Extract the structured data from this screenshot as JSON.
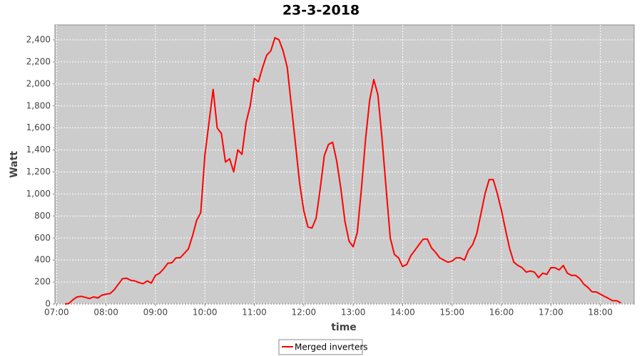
{
  "chart_data": {
    "type": "line",
    "title": "23-3-2018",
    "x_label": "time",
    "y_label": "Watt",
    "x": [
      "07:10",
      "07:15",
      "07:20",
      "07:25",
      "07:30",
      "07:35",
      "07:40",
      "07:45",
      "07:50",
      "07:55",
      "08:00",
      "08:05",
      "08:10",
      "08:15",
      "08:20",
      "08:25",
      "08:30",
      "08:35",
      "08:40",
      "08:45",
      "08:50",
      "08:55",
      "09:00",
      "09:05",
      "09:10",
      "09:15",
      "09:20",
      "09:25",
      "09:30",
      "09:35",
      "09:40",
      "09:45",
      "09:50",
      "09:55",
      "10:00",
      "10:05",
      "10:10",
      "10:15",
      "10:20",
      "10:25",
      "10:30",
      "10:35",
      "10:40",
      "10:45",
      "10:50",
      "10:55",
      "11:00",
      "11:05",
      "11:10",
      "11:15",
      "11:20",
      "11:25",
      "11:30",
      "11:35",
      "11:40",
      "11:45",
      "11:50",
      "11:55",
      "12:00",
      "12:05",
      "12:10",
      "12:15",
      "12:20",
      "12:25",
      "12:30",
      "12:35",
      "12:40",
      "12:45",
      "12:50",
      "12:55",
      "13:00",
      "13:05",
      "13:10",
      "13:15",
      "13:20",
      "13:25",
      "13:30",
      "13:35",
      "13:40",
      "13:45",
      "13:50",
      "13:55",
      "14:00",
      "14:05",
      "14:10",
      "14:15",
      "14:20",
      "14:25",
      "14:30",
      "14:35",
      "14:40",
      "14:45",
      "14:50",
      "14:55",
      "15:00",
      "15:05",
      "15:10",
      "15:15",
      "15:20",
      "15:25",
      "15:30",
      "15:35",
      "15:40",
      "15:45",
      "15:50",
      "15:55",
      "16:00",
      "16:05",
      "16:10",
      "16:15",
      "16:20",
      "16:25",
      "16:30",
      "16:35",
      "16:40",
      "16:45",
      "16:50",
      "16:55",
      "17:00",
      "17:05",
      "17:10",
      "17:15",
      "17:20",
      "17:25",
      "17:30",
      "17:35",
      "17:40",
      "17:45",
      "17:50",
      "17:55",
      "18:00",
      "18:05",
      "18:10",
      "18:15",
      "18:20",
      "18:25"
    ],
    "series": [
      {
        "name": "Merged inverters",
        "color": "#ff0000",
        "values": [
          0,
          5,
          40,
          65,
          70,
          60,
          50,
          65,
          55,
          80,
          90,
          95,
          130,
          180,
          230,
          235,
          215,
          210,
          195,
          185,
          210,
          190,
          260,
          280,
          320,
          370,
          375,
          420,
          420,
          460,
          500,
          620,
          760,
          830,
          1350,
          1650,
          1950,
          1600,
          1550,
          1290,
          1320,
          1200,
          1400,
          1360,
          1650,
          1800,
          2050,
          2020,
          2150,
          2260,
          2300,
          2420,
          2400,
          2300,
          2150,
          1800,
          1450,
          1100,
          850,
          700,
          690,
          780,
          1050,
          1350,
          1450,
          1470,
          1300,
          1050,
          750,
          570,
          520,
          650,
          1050,
          1500,
          1850,
          2040,
          1900,
          1500,
          1050,
          600,
          450,
          420,
          340,
          360,
          440,
          490,
          540,
          590,
          590,
          510,
          470,
          420,
          400,
          380,
          390,
          420,
          420,
          400,
          490,
          540,
          640,
          820,
          1000,
          1130,
          1130,
          1000,
          850,
          670,
          500,
          380,
          350,
          330,
          290,
          300,
          290,
          240,
          280,
          270,
          330,
          330,
          310,
          350,
          280,
          260,
          260,
          230,
          180,
          150,
          110,
          110,
          90,
          70,
          50,
          30,
          30,
          10
        ]
      }
    ],
    "xlim": [
      "06:58",
      "18:41"
    ],
    "xticks": [
      "07:00",
      "08:00",
      "09:00",
      "10:00",
      "11:00",
      "12:00",
      "13:00",
      "14:00",
      "15:00",
      "16:00",
      "17:00",
      "18:00"
    ],
    "ylim": [
      0,
      2536
    ],
    "yticks": [
      0,
      200,
      400,
      600,
      800,
      {
        "value": 1000,
        "label": "1,000"
      },
      {
        "value": 1200,
        "label": "1,200"
      },
      {
        "value": 1400,
        "label": "1,400"
      },
      {
        "value": 1600,
        "label": "1,600"
      },
      {
        "value": 1800,
        "label": "1,800"
      },
      {
        "value": 2000,
        "label": "2,000"
      },
      {
        "value": 2200,
        "label": "2,200"
      },
      {
        "value": 2400,
        "label": "2,400"
      }
    ],
    "grid": true
  }
}
